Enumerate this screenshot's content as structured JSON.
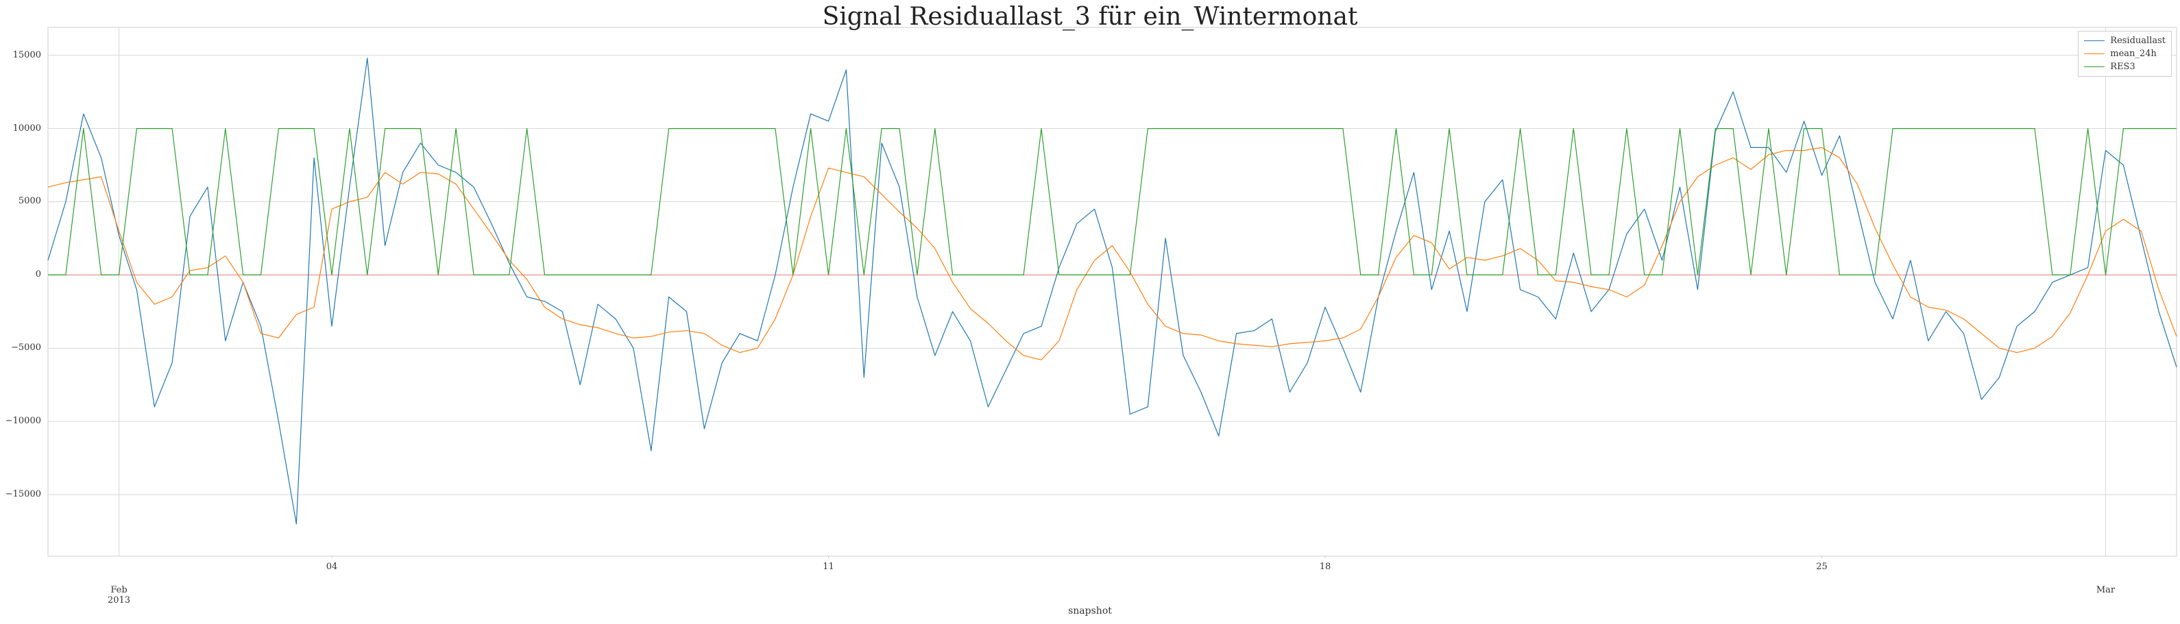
{
  "chart_data": {
    "type": "line",
    "title": "Signal Residuallast_3 für ein_Wintermonat",
    "x_label": "snapshot",
    "x": [
      0,
      0.25,
      0.5,
      0.75,
      1,
      1.25,
      1.5,
      1.75,
      2,
      2.25,
      2.5,
      2.75,
      3,
      3.25,
      3.5,
      3.75,
      4,
      4.25,
      4.5,
      4.75,
      5,
      5.25,
      5.5,
      5.75,
      6,
      6.25,
      6.5,
      6.75,
      7,
      7.25,
      7.5,
      7.75,
      8,
      8.25,
      8.5,
      8.75,
      9,
      9.25,
      9.5,
      9.75,
      10,
      10.25,
      10.5,
      10.75,
      11,
      11.25,
      11.5,
      11.75,
      12,
      12.25,
      12.5,
      12.75,
      13,
      13.25,
      13.5,
      13.75,
      14,
      14.25,
      14.5,
      14.75,
      15,
      15.25,
      15.5,
      15.75,
      16,
      16.25,
      16.5,
      16.75,
      17,
      17.25,
      17.5,
      17.75,
      18,
      18.25,
      18.5,
      18.75,
      19,
      19.25,
      19.5,
      19.75,
      20,
      20.25,
      20.5,
      20.75,
      21,
      21.25,
      21.5,
      21.75,
      22,
      22.25,
      22.5,
      22.75,
      23,
      23.25,
      23.5,
      23.75,
      24,
      24.25,
      24.5,
      24.75,
      25,
      25.25,
      25.5,
      25.75,
      26,
      26.25,
      26.5,
      26.75,
      27,
      27.25,
      27.5,
      27.75,
      28,
      28.25,
      28.5,
      28.75,
      29,
      29.25,
      29.5,
      29.75,
      30
    ],
    "series": [
      {
        "name": "Residuallast",
        "color": "#1f77b4",
        "values": [
          1000,
          5000,
          11000,
          8000,
          2700,
          -1000,
          -9000,
          -6000,
          4000,
          6000,
          -4500,
          -500,
          -3500,
          -10000,
          -17000,
          8000,
          -3500,
          6000,
          14800,
          2000,
          7000,
          9000,
          7500,
          7000,
          6000,
          3500,
          800,
          -1500,
          -1800,
          -2500,
          -7500,
          -2000,
          -3000,
          -5000,
          -12000,
          -1500,
          -2500,
          -10500,
          -6000,
          -4000,
          -4500,
          0,
          6000,
          11000,
          10500,
          14000,
          -7000,
          9000,
          6000,
          -1500,
          -5500,
          -2500,
          -4500,
          -9000,
          -6500,
          -4000,
          -3500,
          500,
          3500,
          4500,
          500,
          -9500,
          -9000,
          2500,
          -5500,
          -8000,
          -11000,
          -4000,
          -3800,
          -3000,
          -8000,
          -6000,
          -2200,
          -5000,
          -8000,
          -1500,
          3000,
          7000,
          -1000,
          3000,
          -2500,
          5000,
          6500,
          -1000,
          -1500,
          -3000,
          1500,
          -2500,
          -1000,
          2800,
          4500,
          1000,
          6000,
          -1000,
          9800,
          12500,
          8700,
          8700,
          7000,
          10500,
          6800,
          9500,
          4500,
          -500,
          -3000,
          1000,
          -4500,
          -2500,
          -4000,
          -8500,
          -7000,
          -3500,
          -2500,
          -500,
          0,
          500,
          8500,
          7500,
          2500,
          -2500,
          -6300
        ]
      },
      {
        "name": "mean_24h",
        "color": "#ff7f0e",
        "values": [
          6000,
          6300,
          6500,
          6700,
          3000,
          -500,
          -2000,
          -1500,
          300,
          500,
          1300,
          -500,
          -4000,
          -4300,
          -2700,
          -2200,
          4500,
          5000,
          5300,
          7000,
          6200,
          7000,
          6900,
          6200,
          4500,
          2800,
          1000,
          -300,
          -2200,
          -3000,
          -3400,
          -3600,
          -4000,
          -4300,
          -4200,
          -3900,
          -3800,
          -4000,
          -4800,
          -5300,
          -5000,
          -3000,
          0,
          4000,
          7300,
          7000,
          6700,
          5500,
          4300,
          3200,
          1800,
          -500,
          -2300,
          -3300,
          -4500,
          -5500,
          -5800,
          -4500,
          -1000,
          1000,
          2000,
          200,
          -2000,
          -3500,
          -4000,
          -4100,
          -4500,
          -4700,
          -4800,
          -4900,
          -4700,
          -4600,
          -4500,
          -4300,
          -3700,
          -1500,
          1200,
          2700,
          2200,
          400,
          1200,
          1000,
          1300,
          1800,
          1000,
          -400,
          -500,
          -800,
          -1000,
          -1500,
          -700,
          2000,
          5000,
          6700,
          7500,
          8000,
          7200,
          8200,
          8500,
          8500,
          8700,
          8000,
          6200,
          3200,
          700,
          -1500,
          -2200,
          -2400,
          -3000,
          -4000,
          -5000,
          -5300,
          -5000,
          -4200,
          -2600,
          0,
          3000,
          3800,
          3000,
          -1000,
          -4200
        ]
      },
      {
        "name": "RES3",
        "color": "#2ca02c",
        "values": [
          0,
          0,
          10000,
          0,
          0,
          10000,
          10000,
          10000,
          0,
          0,
          10000,
          0,
          0,
          10000,
          10000,
          10000,
          0,
          10000,
          0,
          10000,
          10000,
          10000,
          0,
          10000,
          0,
          0,
          0,
          10000,
          0,
          0,
          0,
          0,
          0,
          0,
          0,
          10000,
          10000,
          10000,
          10000,
          10000,
          10000,
          10000,
          0,
          10000,
          0,
          10000,
          0,
          10000,
          10000,
          0,
          10000,
          0,
          0,
          0,
          0,
          0,
          10000,
          0,
          0,
          0,
          0,
          0,
          10000,
          10000,
          10000,
          10000,
          10000,
          10000,
          10000,
          10000,
          10000,
          10000,
          10000,
          10000,
          0,
          0,
          10000,
          0,
          0,
          10000,
          0,
          0,
          0,
          10000,
          0,
          0,
          10000,
          0,
          0,
          10000,
          0,
          0,
          10000,
          0,
          10000,
          10000,
          0,
          10000,
          0,
          10000,
          10000,
          0,
          0,
          0,
          10000,
          10000,
          10000,
          10000,
          10000,
          10000,
          10000,
          10000,
          10000,
          0,
          0,
          10000,
          0,
          10000,
          10000,
          10000,
          10000
        ]
      }
    ],
    "reference_line": {
      "value": 0,
      "color": "#e8817a"
    },
    "xlim": [
      0,
      30
    ],
    "xticks": [
      {
        "value": 1,
        "label": "Feb\n2013"
      },
      {
        "value": 29,
        "label": "Mar"
      }
    ],
    "xticks_minor": [
      {
        "value": 4,
        "label": "04"
      },
      11,
      18,
      25
    ],
    "ylim": [
      -19200,
      16900
    ],
    "yticks": [
      {
        "value": -15000,
        "label": "−15000"
      },
      {
        "value": -10000,
        "label": "−10000"
      },
      {
        "value": -5000,
        "label": "−5000"
      },
      0,
      5000,
      10000,
      15000
    ],
    "grid": true,
    "legend": "upper right"
  }
}
